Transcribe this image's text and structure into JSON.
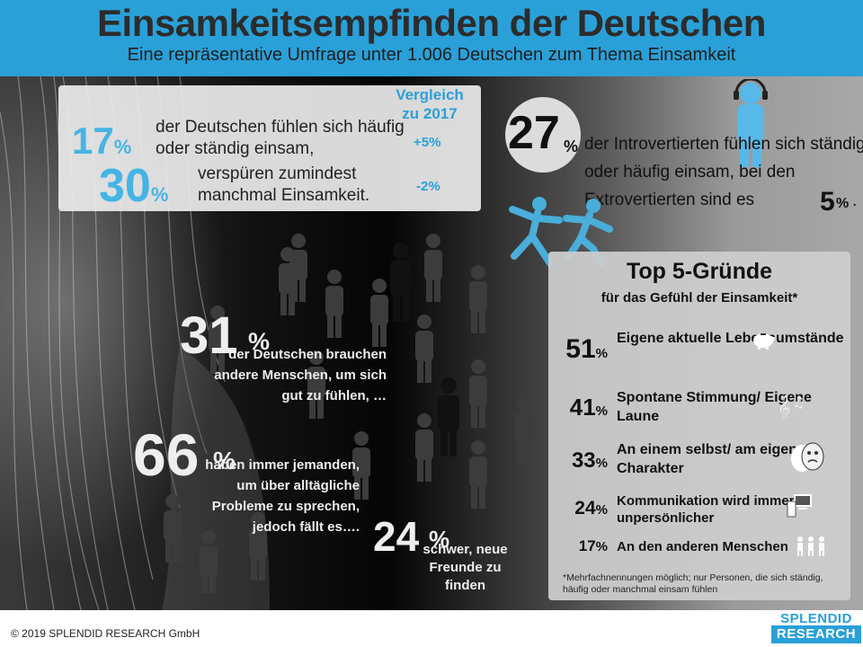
{
  "header": {
    "title": "Einsamkeitsempfinden der Deutschen",
    "subtitle": "Eine repräsentative Umfrage unter 1.006 Deutschen zum Thema Einsamkeit"
  },
  "stats_box": {
    "comparison_header": "Vergleich zu 2017",
    "stat1_value": "17",
    "stat1_unit": "%",
    "stat1_text": "der Deutschen fühlen sich häufig oder ständig einsam,",
    "stat1_change": "+5%",
    "stat2_value": "30",
    "stat2_unit": "%",
    "stat2_text": "verspüren zumindest manchmal Einsamkeit.",
    "stat2_change": "-2%"
  },
  "introvert": {
    "value": "27",
    "unit": "%",
    "text": "der Introvertierten fühlen sich ständig oder häufig einsam, bei den Extrovertierten sind es",
    "extro_value": "5",
    "extro_unit": "%",
    "end": "."
  },
  "crowd_stats": {
    "s31_value": "31",
    "s31_unit": "%",
    "s31_text": "der Deutschen brauchen andere Menschen, um sich gut zu fühlen, …",
    "s66_value": "66",
    "s66_unit": "%",
    "s66_text": "haben immer jemanden, um über alltägliche Probleme zu sprechen, jedoch fällt es….",
    "s24_value": "24",
    "s24_unit": "%",
    "s24_text": "schwer, neue Freunde zu finden"
  },
  "top5": {
    "title": "Top 5-Gründe",
    "subtitle": "für das Gefühl der Einsamkeit*",
    "rows": [
      {
        "value": "51",
        "unit": "%",
        "label": "Eigene aktuelle Lebensumstände",
        "icon": "piggy-bank-icon"
      },
      {
        "value": "41",
        "unit": "%",
        "label": "Spontane Stimmung/ Eigene Laune",
        "icon": "music-notes-icon"
      },
      {
        "value": "33",
        "unit": "%",
        "label": "An einem selbst/ am eigenen Charakter",
        "icon": "theater-masks-icon"
      },
      {
        "value": "24",
        "unit": "%",
        "label": "Kommunikation wird immer unpersönlicher",
        "icon": "devices-icon"
      },
      {
        "value": "17",
        "unit": "%",
        "label": "An den anderen Menschen",
        "icon": "people-group-icon"
      }
    ],
    "note": "*Mehrfachnennungen möglich; nur Personen, die sich ständig, häufig oder manchmal einsam fühlen"
  },
  "footer": {
    "copyright": "© 2019 SPLENDID RESEARCH GmbH",
    "logo_top": "SPLENDID",
    "logo_bottom": "RESEARCH"
  },
  "colors": {
    "accent": "#2aa0d8",
    "highlight": "#45b4e6"
  }
}
